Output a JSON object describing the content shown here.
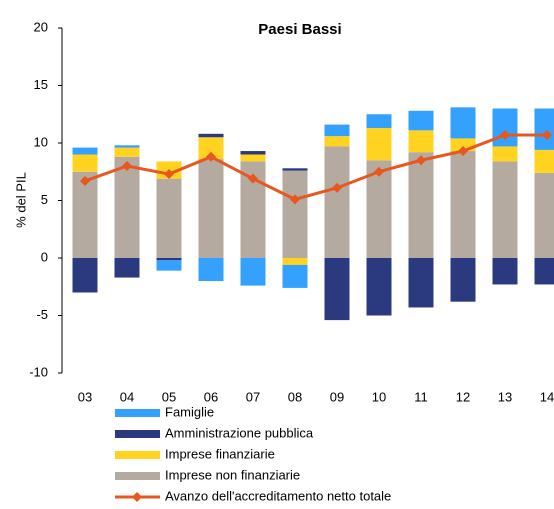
{
  "chart_data": {
    "type": "bar",
    "stacked": true,
    "title": "Paesi Bassi",
    "y_label": "% del PIL",
    "categories": [
      "03",
      "04",
      "05",
      "06",
      "07",
      "08",
      "09",
      "10",
      "11",
      "12",
      "13",
      "14"
    ],
    "ylim": [
      -10,
      20
    ],
    "yticks": [
      -10,
      -5,
      0,
      5,
      10,
      15,
      20
    ],
    "grid": false,
    "series": [
      {
        "name": "Famiglie",
        "color": "#33A1FD",
        "values": [
          0.6,
          0.2,
          -0.9,
          -2.0,
          -2.4,
          -2.0,
          1.0,
          1.2,
          1.7,
          2.7,
          3.3,
          3.6
        ]
      },
      {
        "name": "Amministrazione pubblica",
        "color": "#2B3A7E",
        "values": [
          -3.0,
          -1.7,
          -0.2,
          0.3,
          0.3,
          0.2,
          -5.4,
          -5.0,
          -4.3,
          -3.8,
          -2.3,
          -2.3
        ]
      },
      {
        "name": "Imprese finanziarie",
        "color": "#FFD320",
        "values": [
          1.5,
          0.8,
          1.5,
          1.9,
          0.6,
          -0.6,
          0.9,
          2.8,
          1.9,
          1.1,
          1.3,
          2.0
        ]
      },
      {
        "name": "Imprese non finanziarie",
        "color": "#B5AAA0",
        "values": [
          7.5,
          8.8,
          6.9,
          8.6,
          8.4,
          7.6,
          9.7,
          8.5,
          9.2,
          9.3,
          8.4,
          7.4
        ]
      },
      {
        "name": "Avanzo dell'accreditamento netto totale",
        "color": "#E8571E",
        "type": "line",
        "values": [
          6.7,
          8.0,
          7.3,
          8.8,
          6.9,
          5.1,
          6.1,
          7.5,
          8.5,
          9.3,
          10.7,
          10.7
        ]
      }
    ]
  }
}
